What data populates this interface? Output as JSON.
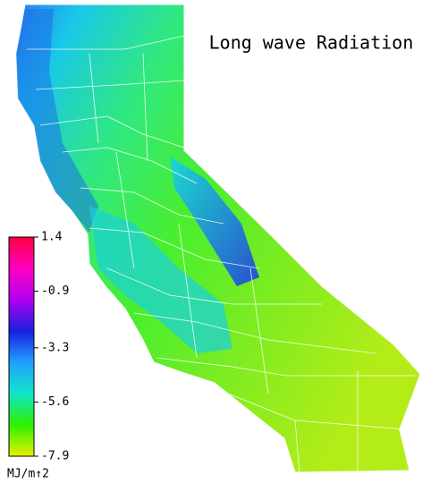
{
  "title": "Long wave Radiation",
  "colorbar": {
    "lim": [
      -7.9,
      1.4
    ],
    "ticks": [
      1.4,
      -0.9,
      -3.3,
      -5.6,
      -7.9
    ],
    "unit": "MJ/m↑2",
    "colors": [
      "#e8f000",
      "#2ef000",
      "#10e6c8",
      "#20a0ff",
      "#1820e0",
      "#b000f0",
      "#ff00c0",
      "#ff0040"
    ]
  }
}
